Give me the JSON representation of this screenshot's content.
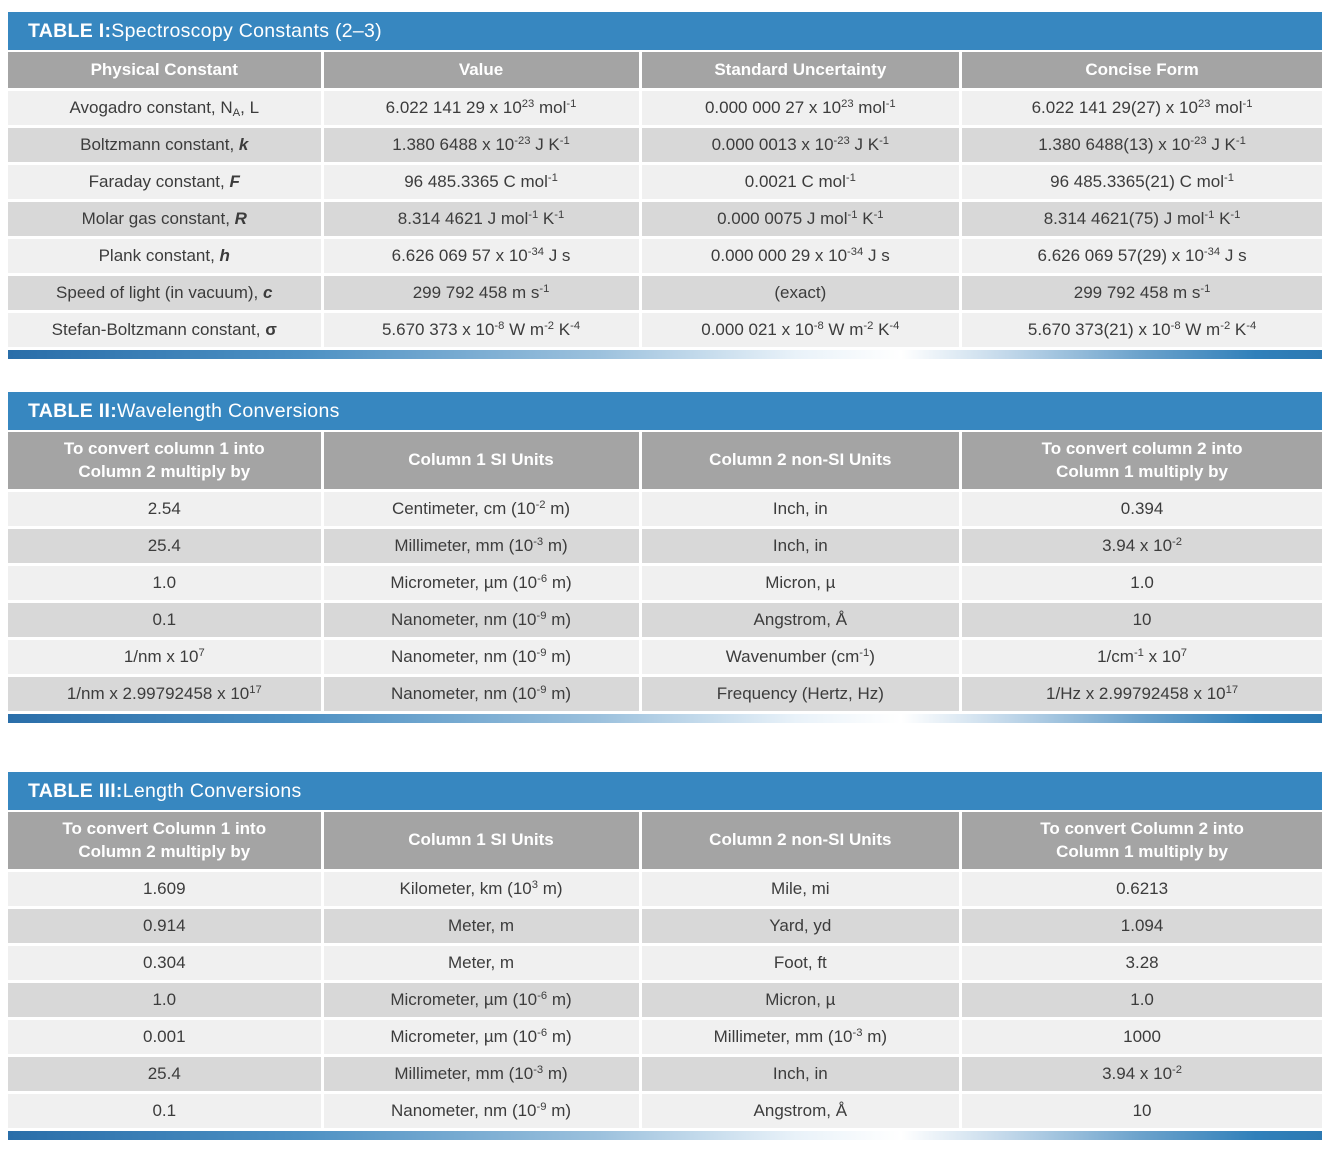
{
  "colors": {
    "header_blue": "#3787c0",
    "column_header_gray": "#a4a4a4",
    "row_light": "#f0f0f0",
    "row_dark": "#d8d8d8",
    "body_text": "#3c3c3c"
  },
  "tables": [
    {
      "title": "~{TABLE I:} Spectroscopy Constants (2–3)",
      "columns": [
        "Physical Constant",
        "Value",
        "Standard Uncertainty",
        "Concise Form"
      ],
      "rows": [
        [
          "Avogadro constant, N_{A}, L",
          "6.022 141 29 x 10^{23} mol^{-1}",
          "0.000 000 27 x 10^{23} mol^{-1}",
          "6.022 141 29(27) x 10^{23} mol^{-1}"
        ],
        [
          "Boltzmann constant, *{k}",
          "1.380 6488 x 10^{-23} J K^{-1}",
          "0.000 0013 x 10^{-23} J K^{-1}",
          "1.380 6488(13) x 10^{-23} J K^{-1}"
        ],
        [
          "Faraday constant, *{F}",
          "96 485.3365 C mol^{-1}",
          "0.0021 C mol^{-1}",
          "96 485.3365(21) C mol^{-1}"
        ],
        [
          "Molar gas constant, *{R}",
          "8.314 4621 J mol^{-1} K^{-1}",
          "0.000 0075 J mol^{-1} K^{-1}",
          "8.314 4621(75) J mol^{-1} K^{-1}"
        ],
        [
          "Plank constant, *{h}",
          "6.626 069 57 x 10^{-34} J s",
          "0.000 000 29 x 10^{-34} J s",
          "6.626 069 57(29) x 10^{-34} J s"
        ],
        [
          "Speed of light (in vacuum), *{c}",
          "299 792 458 m s^{-1}",
          "(exact)",
          "299 792 458 m s^{-1}"
        ],
        [
          "Stefan-Boltzmann constant, ~{σ}",
          "5.670 373 x 10^{-8} W m^{-2} K^{-4}",
          "0.000 021 x 10^{-8} W m^{-2} K^{-4}",
          "5.670 373(21) x 10^{-8} W m^{-2} K^{-4}"
        ]
      ]
    },
    {
      "title": "~{TABLE II:} Wavelength Conversions",
      "columns": [
        "To convert column 1 into\nColumn 2 multiply by",
        "Column 1 SI Units",
        "Column 2 non-SI Units",
        "To convert column 2 into\nColumn 1 multiply by"
      ],
      "rows": [
        [
          "2.54",
          "Centimeter, cm (10^{-2} m)",
          "Inch, in",
          "0.394"
        ],
        [
          "25.4",
          "Millimeter, mm (10^{-3} m)",
          "Inch, in",
          "3.94 x 10^{-2}"
        ],
        [
          "1.0",
          "Micrometer, µm (10^{-6} m)",
          "Micron, µ",
          "1.0"
        ],
        [
          "0.1",
          "Nanometer, nm (10^{-9} m)",
          "Angstrom, Å",
          "10"
        ],
        [
          "1/nm x 10^{7}",
          "Nanometer, nm (10^{-9} m)",
          "Wavenumber (cm^{-1})",
          "1/cm^{-1} x 10^{7}"
        ],
        [
          "1/nm x 2.99792458 x 10^{17}",
          "Nanometer, nm (10^{-9} m)",
          "Frequency (Hertz, Hz)",
          "1/Hz x 2.99792458 x 10^{17}"
        ]
      ]
    },
    {
      "title": "~{TABLE III:} Length Conversions",
      "columns": [
        "To convert Column 1 into\nColumn 2 multiply by",
        "Column 1 SI Units",
        "Column 2 non-SI Units",
        "To convert Column 2 into\nColumn 1 multiply by"
      ],
      "rows": [
        [
          "1.609",
          "Kilometer, km (10^{3} m)",
          "Mile, mi",
          "0.6213"
        ],
        [
          "0.914",
          "Meter, m",
          "Yard, yd",
          "1.094"
        ],
        [
          "0.304",
          "Meter, m",
          "Foot, ft",
          "3.28"
        ],
        [
          "1.0",
          "Micrometer, µm (10^{-6} m)",
          "Micron, µ",
          "1.0"
        ],
        [
          "0.001",
          "Micrometer, µm (10^{-6} m)",
          "Millimeter, mm (10^{-3} m)",
          "1000"
        ],
        [
          "25.4",
          "Millimeter, mm (10^{-3} m)",
          "Inch, in",
          "3.94 x 10^{-2}"
        ],
        [
          "0.1",
          "Nanometer, nm (10^{-9} m)",
          "Angstrom, Å",
          "10"
        ]
      ]
    }
  ]
}
